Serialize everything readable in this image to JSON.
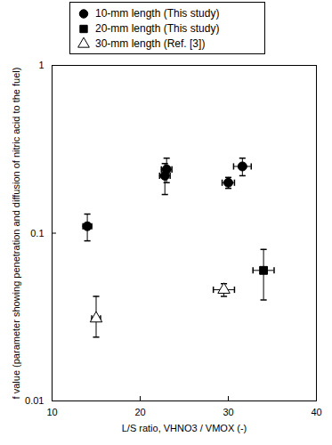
{
  "chart_data": {
    "type": "scatter",
    "x_label": "L/S ratio, VHNO3 / VMOX (-)",
    "y_label": "f value (parameter showing penetration and diffusion of nitric acid to the fuel)",
    "log": "y",
    "xlim": [
      10,
      40
    ],
    "xticks": [
      10,
      20,
      30,
      40
    ],
    "ylim": [
      0.01,
      1
    ],
    "yticks": [
      0.01,
      0.1,
      1
    ],
    "legend": "top",
    "series": [
      {
        "name": "10-mm length (This study)",
        "color": "#000000",
        "marker": "circle",
        "x": [
          14,
          22.8,
          23,
          30,
          31.6
        ],
        "values": [
          0.11,
          0.22,
          0.24,
          0.2,
          0.25
        ],
        "x_low": [
          13.5,
          22.2,
          22.4,
          29.3,
          30.6
        ],
        "x_high": [
          14.5,
          23.4,
          23.6,
          30.7,
          32.6
        ],
        "y_low": [
          0.09,
          0.17,
          0.2,
          0.185,
          0.22
        ],
        "y_high": [
          0.13,
          0.26,
          0.28,
          0.215,
          0.28
        ]
      },
      {
        "name": "20-mm length (This study)",
        "color": "#000000",
        "marker": "square",
        "x": [
          34
        ],
        "values": [
          0.06
        ],
        "x_low": [
          32.8
        ],
        "x_high": [
          35.2
        ],
        "y_low": [
          0.04
        ],
        "y_high": [
          0.08
        ]
      },
      {
        "name": "30-mm length (Ref. [3])",
        "color": "#000000",
        "marker": "open-triangle",
        "x": [
          15,
          29.5
        ],
        "values": [
          0.031,
          0.046
        ],
        "x_low": [
          14.5,
          28.3
        ],
        "x_high": [
          15.5,
          30.7
        ],
        "y_low": [
          0.024,
          0.042
        ],
        "y_high": [
          0.042,
          0.05
        ]
      }
    ]
  }
}
